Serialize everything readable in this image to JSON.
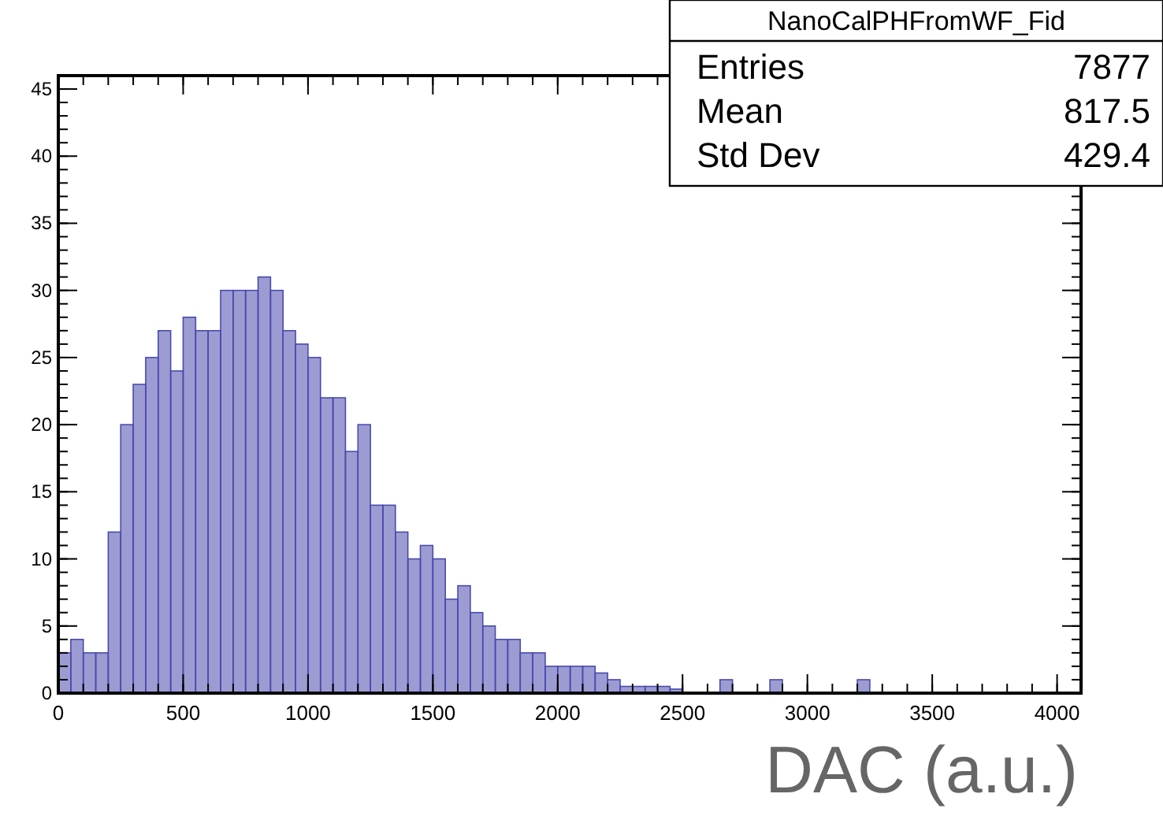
{
  "chart_data": {
    "type": "histogram",
    "title": "NanoCalPHFromWF_Fid",
    "xlabel": "DAC (a.u.)",
    "bins": [
      0,
      50,
      100,
      150,
      200,
      250,
      300,
      350,
      400,
      450,
      500,
      550,
      600,
      650,
      700,
      750,
      800,
      850,
      900,
      950,
      1000,
      1050,
      1100,
      1150,
      1200,
      1250,
      1300,
      1350,
      1400,
      1450,
      1500,
      1550,
      1600,
      1650,
      1700,
      1750,
      1800,
      1850,
      1900,
      1950,
      2000,
      2050,
      2100,
      2150,
      2200,
      2250,
      2300,
      2350,
      2400,
      2450,
      2500,
      2650,
      2700,
      2850,
      2900,
      3200,
      3250
    ],
    "values": [
      3,
      4,
      3,
      3,
      12,
      20,
      23,
      25,
      27,
      24,
      28,
      27,
      27,
      30,
      30,
      30,
      31,
      30,
      27,
      26,
      25,
      22,
      22,
      18,
      20,
      14,
      14,
      12,
      10,
      11,
      10,
      7,
      8,
      6,
      5,
      4,
      4,
      3,
      3,
      2,
      2,
      2,
      2,
      1.5,
      1,
      0.5,
      0.5,
      0.5,
      0.5,
      0.3,
      0,
      1,
      0,
      1,
      0,
      1
    ],
    "color": "#4a4aaf",
    "xlim": [
      0,
      4096
    ],
    "xticks": [
      0,
      500,
      1000,
      1500,
      2000,
      2500,
      3000,
      3500,
      4000
    ],
    "ylim": [
      0,
      46
    ],
    "yticks": [
      0,
      5,
      10,
      15,
      20,
      25,
      30,
      35,
      40,
      45
    ],
    "grid": false,
    "annotations": [
      "Entries",
      "7877",
      "Mean",
      "817.5",
      "Std Dev",
      "429.4"
    ]
  }
}
